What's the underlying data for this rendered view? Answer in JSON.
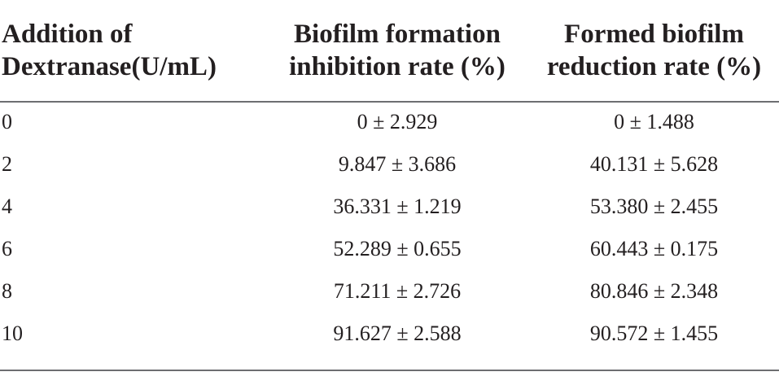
{
  "table": {
    "headers": [
      [
        "Addition of",
        "Dextranase(U/mL)"
      ],
      [
        "Biofilm formation",
        "inhibition rate (%)"
      ],
      [
        "Formed biofilm",
        "reduction rate (%)"
      ]
    ],
    "rows": [
      [
        "0",
        "0 ± 2.929",
        "0 ± 1.488"
      ],
      [
        "2",
        "9.847 ± 3.686",
        "40.131 ± 5.628"
      ],
      [
        "4",
        "36.331 ± 1.219",
        "53.380 ± 2.455"
      ],
      [
        "6",
        "52.289 ± 0.655",
        "60.443 ± 0.175"
      ],
      [
        "8",
        "71.211 ± 2.726",
        "80.846 ± 2.348"
      ],
      [
        "10",
        "91.627 ± 2.588",
        "90.572 ± 1.455"
      ]
    ]
  }
}
